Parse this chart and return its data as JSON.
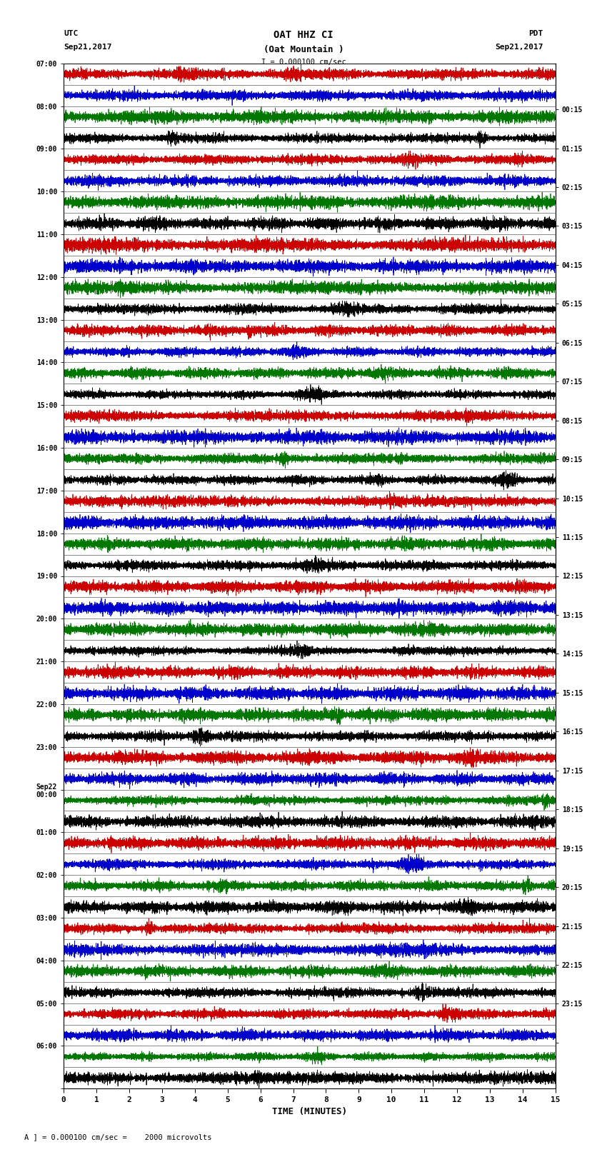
{
  "title_line1": "OAT HHZ CI",
  "title_line2": "(Oat Mountain )",
  "title_line3": "I = 0.000100 cm/sec",
  "left_timezone": "UTC",
  "left_date": "Sep21,2017",
  "right_timezone": "PDT",
  "right_date": "Sep21,2017",
  "xlabel": "TIME (MINUTES)",
  "bottom_note": "A ] = 0.000100 cm/sec =    2000 microvolts",
  "left_labels": [
    "07:00",
    "08:00",
    "09:00",
    "10:00",
    "11:00",
    "12:00",
    "13:00",
    "14:00",
    "15:00",
    "16:00",
    "17:00",
    "18:00",
    "19:00",
    "20:00",
    "21:00",
    "22:00",
    "23:00",
    "Sep22\n00:00",
    "01:00",
    "02:00",
    "03:00",
    "04:00",
    "05:00",
    "06:00"
  ],
  "right_labels": [
    "00:15",
    "01:15",
    "02:15",
    "03:15",
    "04:15",
    "05:15",
    "06:15",
    "07:15",
    "08:15",
    "09:15",
    "10:15",
    "11:15",
    "12:15",
    "13:15",
    "14:15",
    "15:15",
    "16:15",
    "17:15",
    "18:15",
    "19:15",
    "20:15",
    "21:15",
    "22:15",
    "23:15"
  ],
  "n_rows": 48,
  "n_hours": 24,
  "colors": [
    "#cc0000",
    "#0000cc",
    "#007700",
    "#000000"
  ],
  "bg_color": "#ffffff",
  "xmin": 0,
  "xmax": 15,
  "xticks": [
    0,
    1,
    2,
    3,
    4,
    5,
    6,
    7,
    8,
    9,
    10,
    11,
    12,
    13,
    14,
    15
  ],
  "figure_width": 8.5,
  "figure_height": 16.13,
  "dpi": 100
}
